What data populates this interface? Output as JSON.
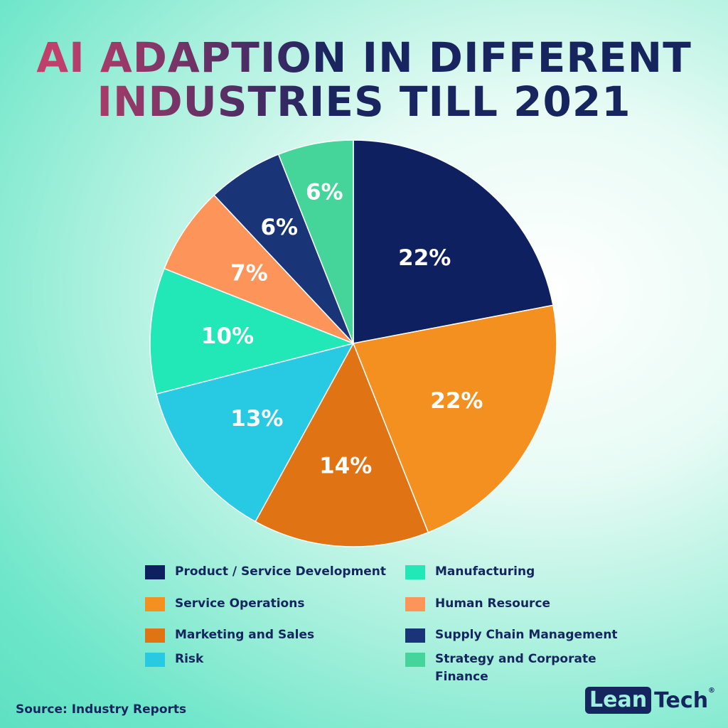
{
  "chart_data": {
    "type": "pie",
    "title_lines": [
      "AI ADAPTION IN DIFFERENT",
      "INDUSTRIES TILL 2021"
    ],
    "slices": [
      {
        "label": "Product / Service Development",
        "value": 22,
        "display": "22%",
        "color": "#0f2060"
      },
      {
        "label": "Service Operations",
        "value": 22,
        "display": "22%",
        "color": "#f39020"
      },
      {
        "label": "Marketing and Sales",
        "value": 14,
        "display": "14%",
        "color": "#e07314"
      },
      {
        "label": "Risk",
        "value": 13,
        "display": "13%",
        "color": "#27c9e3"
      },
      {
        "label": "Manufacturing",
        "value": 10,
        "display": "10%",
        "color": "#22e8b8"
      },
      {
        "label": "Human Resource",
        "value": 7,
        "display": "7%",
        "color": "#fd955a"
      },
      {
        "label": "Supply Chain Management",
        "value": 6,
        "display": "6%",
        "color": "#1a3478"
      },
      {
        "label": "Strategy and Corporate Finance",
        "value": 6,
        "display": "6%",
        "color": "#45d49a"
      }
    ],
    "legend_placement": "bottom"
  },
  "source": "Source: Industry Reports",
  "logo": {
    "part1": "Lean",
    "part2": "Tech",
    "mark": "®"
  }
}
